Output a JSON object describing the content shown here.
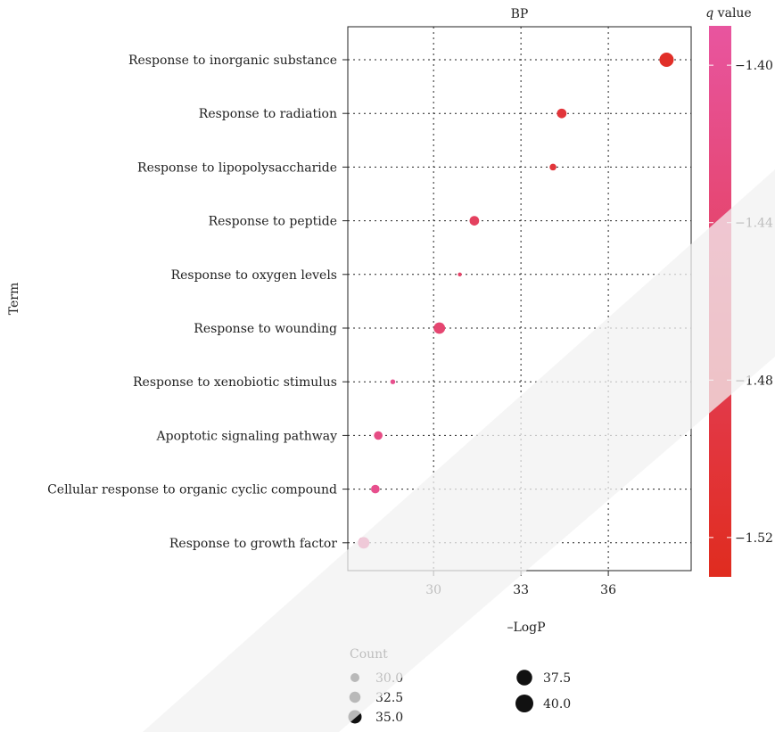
{
  "chart_data": {
    "type": "scatter",
    "panel_title": "BP",
    "xlabel": "–LogP",
    "ylabel": "Term",
    "x_ticks": [
      "30",
      "33",
      "36"
    ],
    "x_tick_values": [
      30,
      33,
      36
    ],
    "xlim": [
      27.3,
      38.6
    ],
    "grid": true,
    "legend_color": {
      "title_italic": "q",
      "title_rest": " value",
      "ticks": [
        "−1.40",
        "−1.44",
        "−1.48",
        "−1.52"
      ],
      "tick_values": [
        -1.4,
        -1.44,
        -1.48,
        -1.52
      ],
      "range": [
        -1.53,
        -1.39
      ],
      "color_high": "#e8559f",
      "color_low": "#e02c1f"
    },
    "legend_size": {
      "title": "Count",
      "labels": [
        "30.0",
        "32.5",
        "35.0",
        "37.5",
        "40.0"
      ],
      "values": [
        30.0,
        32.5,
        35.0,
        37.5,
        40.0
      ]
    },
    "points": [
      {
        "term": "Response to inorganic substance",
        "x": 38.0,
        "q": -1.52,
        "count": 40
      },
      {
        "term": "Response to radiation",
        "x": 34.4,
        "q": -1.5,
        "count": 35
      },
      {
        "term": "Response to lipopolysaccharide",
        "x": 34.1,
        "q": -1.5,
        "count": 32
      },
      {
        "term": "Response to peptide",
        "x": 31.4,
        "q": -1.46,
        "count": 35
      },
      {
        "term": "Response to oxygen levels",
        "x": 30.9,
        "q": -1.45,
        "count": 29
      },
      {
        "term": "Response to wounding",
        "x": 30.2,
        "q": -1.44,
        "count": 37
      },
      {
        "term": "Response to xenobiotic stimulus",
        "x": 28.6,
        "q": -1.41,
        "count": 30
      },
      {
        "term": "Apoptotic signaling pathway",
        "x": 28.1,
        "q": -1.42,
        "count": 34
      },
      {
        "term": "Cellular response to organic cyclic compound",
        "x": 28.0,
        "q": -1.41,
        "count": 34
      },
      {
        "term": "Response to growth factor",
        "x": 27.6,
        "q": -1.41,
        "count": 37
      }
    ]
  }
}
